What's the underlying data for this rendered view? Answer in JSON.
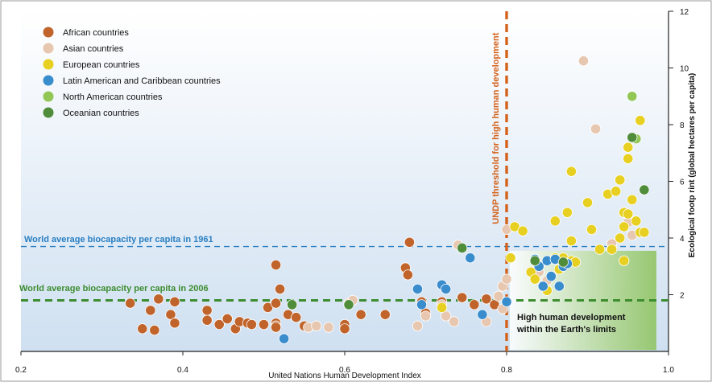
{
  "chart_data": {
    "type": "scatter",
    "xlabel": "United Nations Human Development Index",
    "ylabel": "Ecological footp rint (global hectares per capita)",
    "xlim": [
      0.2,
      1.0
    ],
    "ylim": [
      0,
      12
    ],
    "x_ticks": [
      "0.2",
      "0.4",
      "0.6",
      "0.8",
      "1.0"
    ],
    "y_ticks": [
      "2",
      "4",
      "6",
      "8",
      "10",
      "12"
    ],
    "y_axis_side": "right",
    "grid": false,
    "legend_position": "top-left",
    "annotations": {
      "hdi_threshold": {
        "x": 0.8,
        "label": "UNDP threshold for high human development",
        "color": "#d4621b"
      },
      "biocapacity_1961": {
        "y": 3.7,
        "label": "World average biocapacity per capita in 1961",
        "color": "#2a7fc2"
      },
      "biocapacity_2006": {
        "y": 1.8,
        "label": "World average biocapacity per capita in 2006",
        "color": "#3d8c2f"
      },
      "quadrant": {
        "label_line1": "High human development",
        "label_line2": "within the Earth's limits"
      }
    },
    "series": [
      {
        "name": "African countries",
        "color": "#c0642c",
        "points": [
          [
            0.335,
            1.7
          ],
          [
            0.35,
            0.8
          ],
          [
            0.365,
            0.75
          ],
          [
            0.36,
            1.45
          ],
          [
            0.37,
            1.85
          ],
          [
            0.385,
            1.3
          ],
          [
            0.39,
            1.0
          ],
          [
            0.39,
            1.75
          ],
          [
            0.43,
            1.45
          ],
          [
            0.43,
            1.1
          ],
          [
            0.445,
            0.95
          ],
          [
            0.455,
            1.15
          ],
          [
            0.465,
            0.8
          ],
          [
            0.47,
            1.05
          ],
          [
            0.48,
            1.0
          ],
          [
            0.485,
            0.95
          ],
          [
            0.5,
            0.95
          ],
          [
            0.505,
            1.55
          ],
          [
            0.515,
            1.7
          ],
          [
            0.515,
            1.0
          ],
          [
            0.515,
            0.9
          ],
          [
            0.515,
            0.85
          ],
          [
            0.515,
            3.05
          ],
          [
            0.52,
            2.2
          ],
          [
            0.53,
            1.3
          ],
          [
            0.54,
            1.2
          ],
          [
            0.55,
            0.9
          ],
          [
            0.6,
            0.95
          ],
          [
            0.6,
            0.8
          ],
          [
            0.62,
            1.3
          ],
          [
            0.65,
            1.3
          ],
          [
            0.675,
            2.95
          ],
          [
            0.678,
            2.7
          ],
          [
            0.68,
            3.85
          ],
          [
            0.695,
            1.75
          ],
          [
            0.7,
            1.35
          ],
          [
            0.72,
            1.75
          ],
          [
            0.745,
            1.9
          ],
          [
            0.76,
            1.65
          ],
          [
            0.775,
            1.85
          ],
          [
            0.785,
            1.65
          ]
        ]
      },
      {
        "name": "Asian countries",
        "color": "#e7c7b0",
        "points": [
          [
            0.555,
            0.85
          ],
          [
            0.565,
            0.9
          ],
          [
            0.58,
            0.85
          ],
          [
            0.605,
            1.7
          ],
          [
            0.61,
            1.8
          ],
          [
            0.69,
            0.9
          ],
          [
            0.7,
            1.25
          ],
          [
            0.72,
            1.65
          ],
          [
            0.725,
            1.25
          ],
          [
            0.735,
            1.05
          ],
          [
            0.74,
            3.75
          ],
          [
            0.775,
            1.05
          ],
          [
            0.79,
            1.95
          ],
          [
            0.795,
            1.5
          ],
          [
            0.795,
            2.3
          ],
          [
            0.8,
            2.55
          ],
          [
            0.8,
            4.3
          ],
          [
            0.84,
            2.8
          ],
          [
            0.85,
            2.5
          ],
          [
            0.895,
            10.25
          ],
          [
            0.91,
            7.85
          ],
          [
            0.93,
            3.8
          ],
          [
            0.95,
            4.55
          ],
          [
            0.955,
            4.1
          ]
        ]
      },
      {
        "name": "European countries",
        "color": "#e7d021",
        "points": [
          [
            0.72,
            1.55
          ],
          [
            0.805,
            3.3
          ],
          [
            0.81,
            4.4
          ],
          [
            0.82,
            4.25
          ],
          [
            0.83,
            2.8
          ],
          [
            0.835,
            2.55
          ],
          [
            0.85,
            2.15
          ],
          [
            0.86,
            3.3
          ],
          [
            0.86,
            4.6
          ],
          [
            0.865,
            2.9
          ],
          [
            0.87,
            3.3
          ],
          [
            0.875,
            4.9
          ],
          [
            0.88,
            6.35
          ],
          [
            0.88,
            3.9
          ],
          [
            0.88,
            3.2
          ],
          [
            0.885,
            3.15
          ],
          [
            0.9,
            5.25
          ],
          [
            0.905,
            4.3
          ],
          [
            0.915,
            3.6
          ],
          [
            0.925,
            5.55
          ],
          [
            0.93,
            3.6
          ],
          [
            0.935,
            5.65
          ],
          [
            0.94,
            6.05
          ],
          [
            0.94,
            4.0
          ],
          [
            0.945,
            4.9
          ],
          [
            0.945,
            4.4
          ],
          [
            0.945,
            3.2
          ],
          [
            0.95,
            7.2
          ],
          [
            0.95,
            6.8
          ],
          [
            0.95,
            4.85
          ],
          [
            0.955,
            5.35
          ],
          [
            0.96,
            4.6
          ],
          [
            0.965,
            8.15
          ],
          [
            0.965,
            4.2
          ],
          [
            0.97,
            4.2
          ]
        ]
      },
      {
        "name": "Latin American and Caribbean countries",
        "color": "#3a8dcd",
        "points": [
          [
            0.525,
            0.45
          ],
          [
            0.69,
            2.2
          ],
          [
            0.695,
            1.65
          ],
          [
            0.72,
            2.35
          ],
          [
            0.725,
            2.2
          ],
          [
            0.755,
            3.3
          ],
          [
            0.77,
            1.3
          ],
          [
            0.8,
            1.75
          ],
          [
            0.835,
            3.25
          ],
          [
            0.84,
            3.0
          ],
          [
            0.845,
            2.3
          ],
          [
            0.85,
            3.2
          ],
          [
            0.855,
            2.65
          ],
          [
            0.86,
            3.25
          ],
          [
            0.865,
            2.3
          ],
          [
            0.87,
            3.0
          ],
          [
            0.875,
            3.1
          ]
        ]
      },
      {
        "name": "North American countries",
        "color": "#92c755",
        "points": [
          [
            0.955,
            9.0
          ],
          [
            0.96,
            7.5
          ]
        ]
      },
      {
        "name": "Oceanian countries",
        "color": "#4f8d3a",
        "points": [
          [
            0.535,
            1.65
          ],
          [
            0.605,
            1.65
          ],
          [
            0.745,
            3.65
          ],
          [
            0.835,
            3.2
          ],
          [
            0.87,
            3.15
          ],
          [
            0.955,
            7.55
          ],
          [
            0.97,
            5.7
          ]
        ]
      }
    ]
  }
}
